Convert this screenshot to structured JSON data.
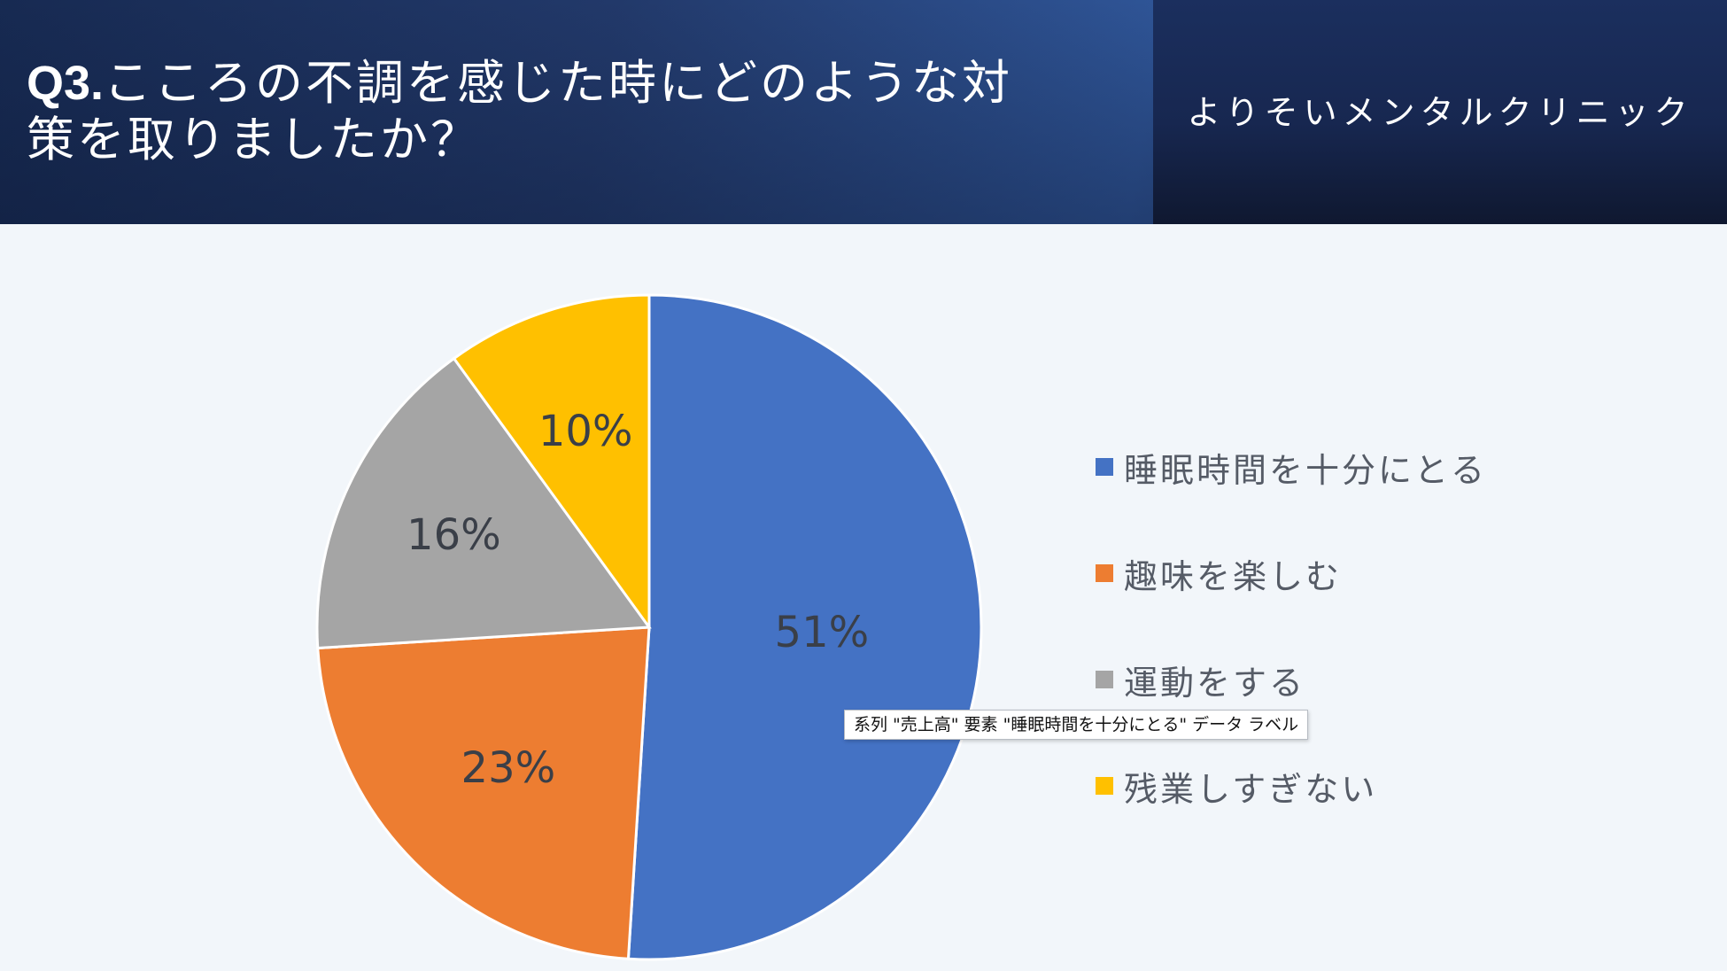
{
  "header": {
    "question_number": "Q3.",
    "question_text": "こころの不調を感じた時にどのような対\n策を取りましたか？",
    "clinic_name": "よりそいメンタルクリニック"
  },
  "chart_data": {
    "type": "pie",
    "title": "",
    "slices": [
      {
        "label": "睡眠時間を十分にとる",
        "value": 51,
        "display": "51%",
        "color": "#4472c4"
      },
      {
        "label": "趣味を楽しむ",
        "value": 23,
        "display": "23%",
        "color": "#ed7d31"
      },
      {
        "label": "運動をする",
        "value": 16,
        "display": "16%",
        "color": "#a5a5a5"
      },
      {
        "label": "残業しすぎない",
        "value": 10,
        "display": "10%",
        "color": "#ffc000"
      }
    ],
    "start": "12 o'clock",
    "direction": "clockwise",
    "legend_position": "right"
  },
  "tooltip": {
    "text": "系列 \"売上高\" 要素 \"睡眠時間を十分にとる\" データ ラベル"
  }
}
